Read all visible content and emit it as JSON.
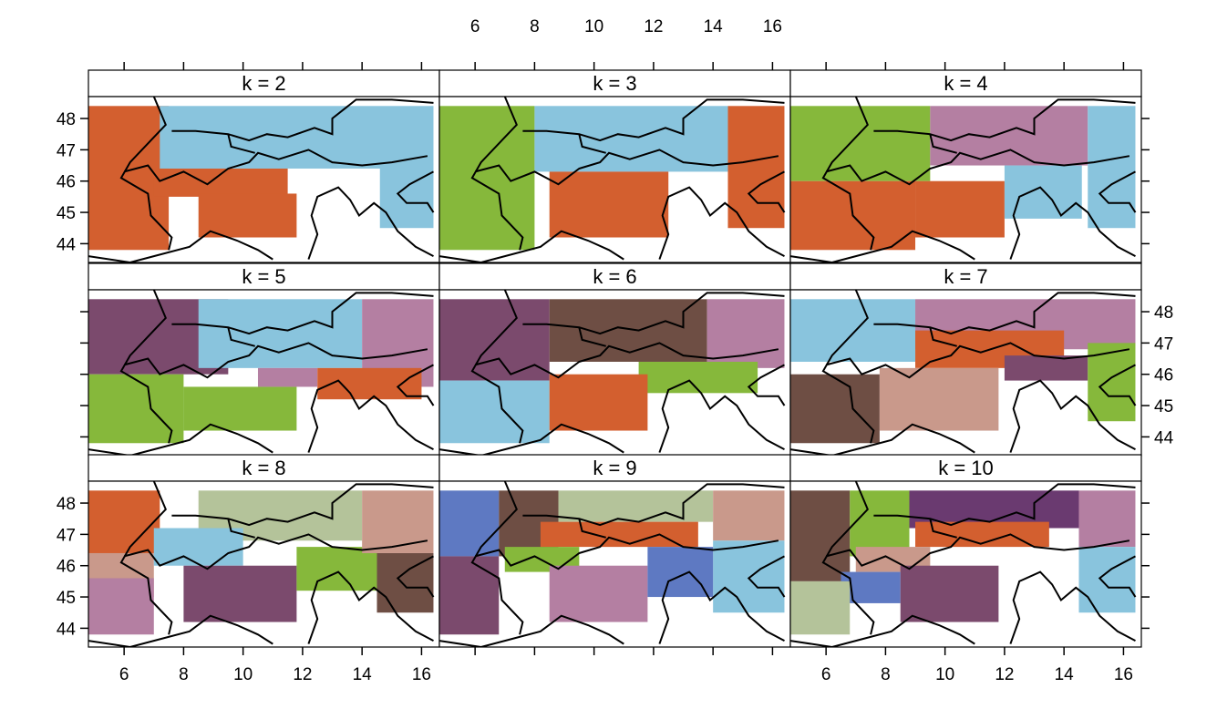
{
  "chart_data": {
    "type": "other",
    "x_ticks": [
      "6",
      "8",
      "10",
      "12",
      "14",
      "16"
    ],
    "y_ticks": [
      "44",
      "45",
      "46",
      "47",
      "48"
    ],
    "xlim": [
      4.8,
      16.6
    ],
    "ylim": [
      43.4,
      48.7
    ],
    "panels": [
      {
        "label": "k = 2",
        "palette": [
          "#d35f2f",
          "#89c4dd"
        ]
      },
      {
        "label": "k = 3",
        "palette": [
          "#86b83b",
          "#89c4dd",
          "#d35f2f"
        ]
      },
      {
        "label": "k = 4",
        "palette": [
          "#86b83b",
          "#b47fa2",
          "#89c4dd",
          "#d35f2f"
        ]
      },
      {
        "label": "k = 5",
        "palette": [
          "#7b4a6d",
          "#89c4dd",
          "#b47fa2",
          "#d35f2f",
          "#86b83b"
        ]
      },
      {
        "label": "k = 6",
        "palette": [
          "#7b4a6d",
          "#6e4e44",
          "#b47fa2",
          "#86b83b",
          "#89c4dd",
          "#d35f2f"
        ]
      },
      {
        "label": "k = 7",
        "palette": [
          "#89c4dd",
          "#b47fa2",
          "#d35f2f",
          "#7b4a6d",
          "#86b83b",
          "#6e4e44",
          "#c9998b"
        ]
      },
      {
        "label": "k = 8",
        "palette": [
          "#d35f2f",
          "#b4c39a",
          "#c9998b",
          "#89c4dd",
          "#7b4a6d",
          "#86b83b",
          "#b47fa2",
          "#6e4e44"
        ]
      },
      {
        "label": "k = 9",
        "palette": [
          "#5e79c2",
          "#6e4e44",
          "#b4c39a",
          "#c9998b",
          "#d35f2f",
          "#86b83b",
          "#89c4dd",
          "#7b4a6d",
          "#b47fa2"
        ]
      },
      {
        "label": "k = 10",
        "palette": [
          "#6e4e44",
          "#86b83b",
          "#6a3a70",
          "#b47fa2",
          "#d35f2f",
          "#c9998b",
          "#89c4dd",
          "#5e79c2",
          "#7b4a6d",
          "#b4c39a"
        ]
      }
    ]
  }
}
